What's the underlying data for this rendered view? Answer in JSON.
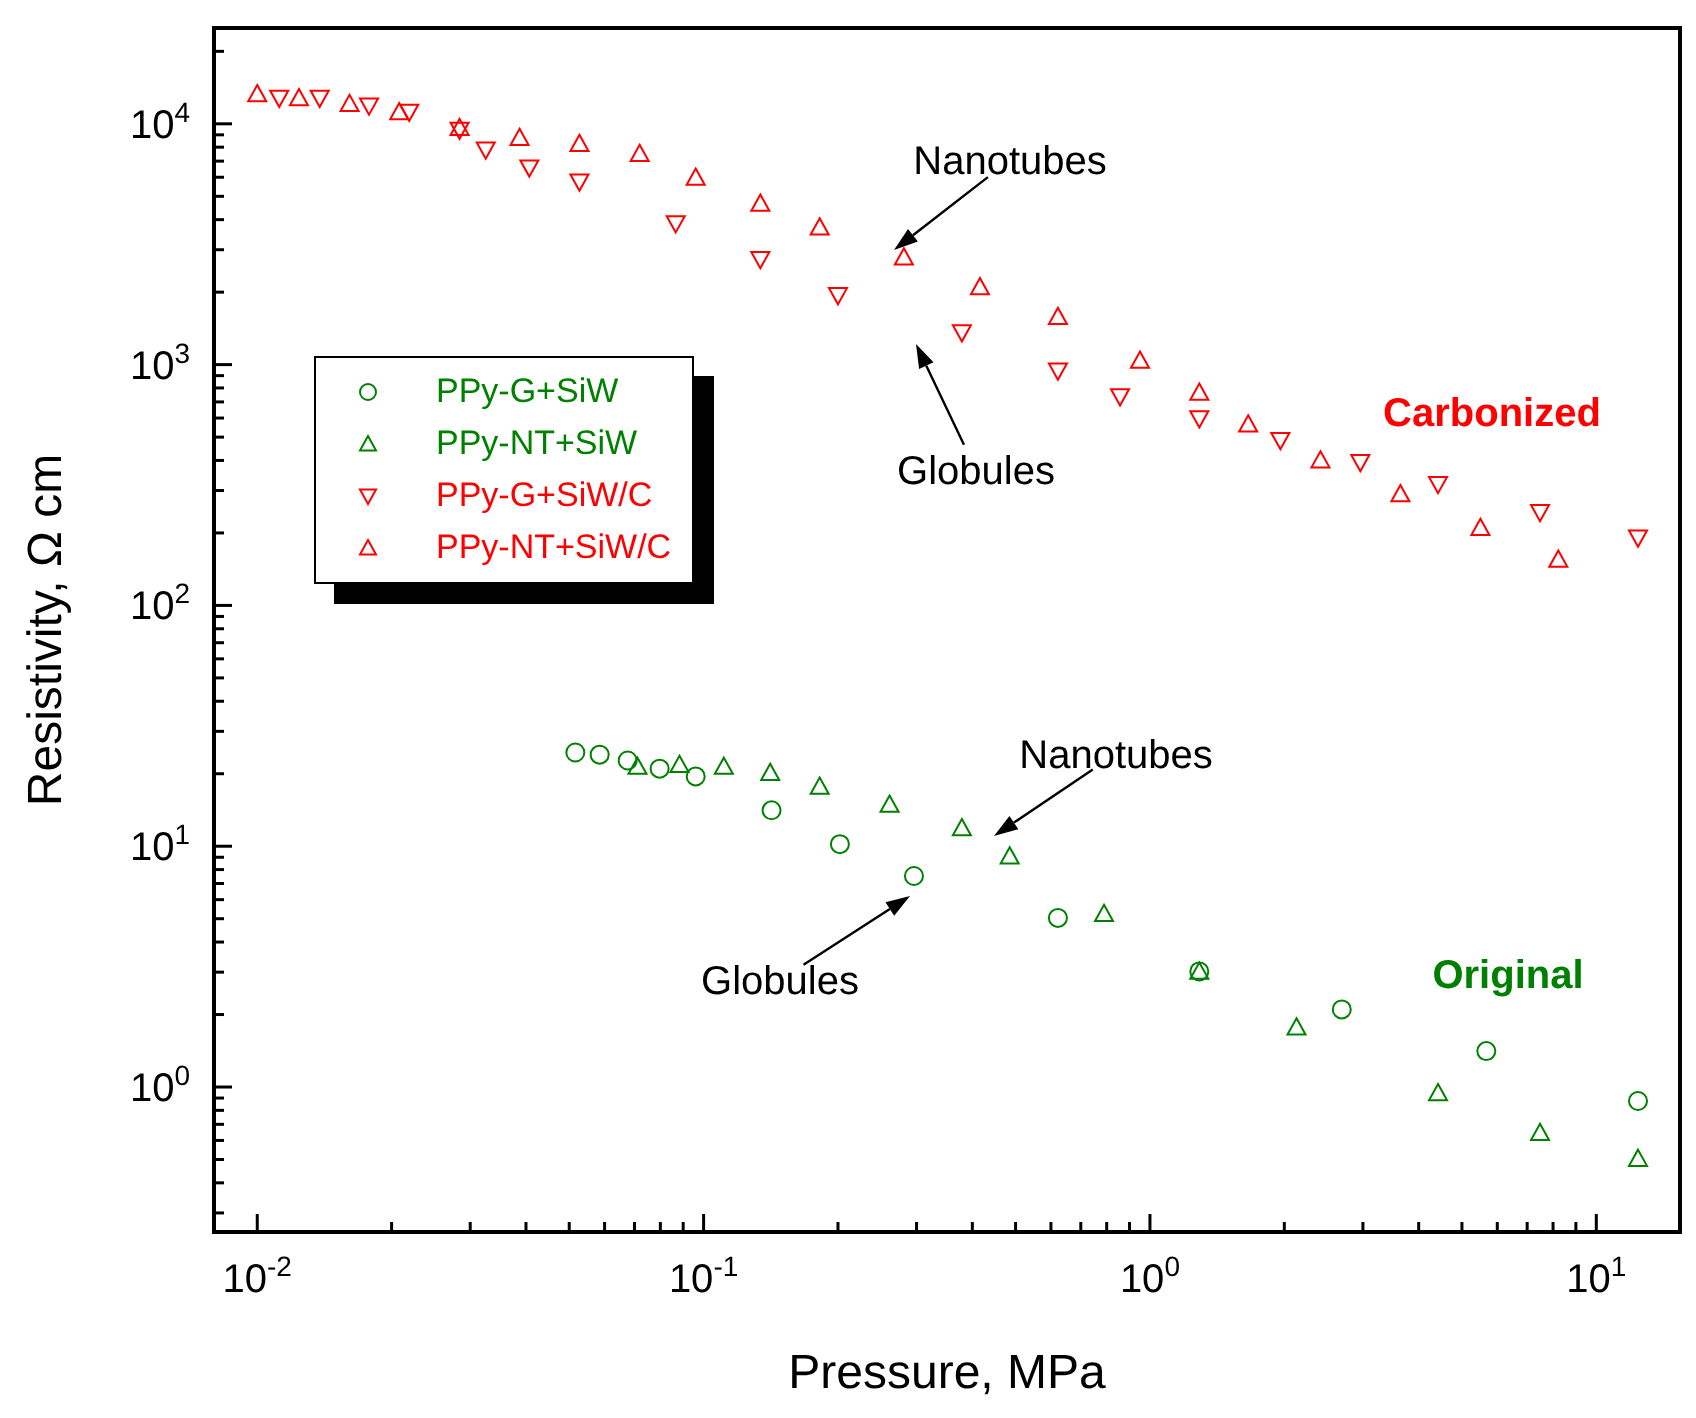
{
  "chart_data": {
    "type": "scatter",
    "xlabel": "Pressure, MPa",
    "ylabel": "Resistivity, Ω cm",
    "log": "xy",
    "legend": "left",
    "xlim": [
      0.008,
      15.4
    ],
    "ylim": [
      0.25,
      25000
    ],
    "xticks": [
      {
        "value": 0.01,
        "label": "10$^{-2}$"
      },
      {
        "value": 0.02,
        "label": null
      },
      {
        "value": 0.03,
        "label": null
      },
      {
        "value": 0.04,
        "label": null
      },
      {
        "value": 0.05,
        "label": null
      },
      {
        "value": 0.06,
        "label": null
      },
      {
        "value": 0.07,
        "label": null
      },
      {
        "value": 0.08,
        "label": null
      },
      {
        "value": 0.09,
        "label": null
      },
      {
        "value": 0.1,
        "label": "10$^{-1}$"
      },
      {
        "value": 0.2,
        "label": null
      },
      {
        "value": 0.3,
        "label": null
      },
      {
        "value": 0.4,
        "label": null
      },
      {
        "value": 0.5,
        "label": null
      },
      {
        "value": 0.6,
        "label": null
      },
      {
        "value": 0.7,
        "label": null
      },
      {
        "value": 0.8,
        "label": null
      },
      {
        "value": 0.9,
        "label": null
      },
      {
        "value": 1,
        "label": "10$^{0}$"
      },
      {
        "value": 2,
        "label": null
      },
      {
        "value": 3,
        "label": null
      },
      {
        "value": 4,
        "label": null
      },
      {
        "value": 5,
        "label": null
      },
      {
        "value": 6,
        "label": null
      },
      {
        "value": 7,
        "label": null
      },
      {
        "value": 8,
        "label": null
      },
      {
        "value": 9,
        "label": null
      },
      {
        "value": 10,
        "label": "10$^{1}$"
      }
    ],
    "yticks": [
      {
        "value": 0.3,
        "label": null
      },
      {
        "value": 0.4,
        "label": null
      },
      {
        "value": 0.5,
        "label": null
      },
      {
        "value": 0.6,
        "label": null
      },
      {
        "value": 0.7,
        "label": null
      },
      {
        "value": 0.8,
        "label": null
      },
      {
        "value": 0.9,
        "label": null
      },
      {
        "value": 1,
        "label": "10$^{0}$"
      },
      {
        "value": 2,
        "label": null
      },
      {
        "value": 3,
        "label": null
      },
      {
        "value": 4,
        "label": null
      },
      {
        "value": 5,
        "label": null
      },
      {
        "value": 6,
        "label": null
      },
      {
        "value": 7,
        "label": null
      },
      {
        "value": 8,
        "label": null
      },
      {
        "value": 9,
        "label": null
      },
      {
        "value": 10,
        "label": "10$^{1}$"
      },
      {
        "value": 20,
        "label": null
      },
      {
        "value": 30,
        "label": null
      },
      {
        "value": 40,
        "label": null
      },
      {
        "value": 50,
        "label": null
      },
      {
        "value": 60,
        "label": null
      },
      {
        "value": 70,
        "label": null
      },
      {
        "value": 80,
        "label": null
      },
      {
        "value": 90,
        "label": null
      },
      {
        "value": 100,
        "label": "10$^{2}$"
      },
      {
        "value": 200,
        "label": null
      },
      {
        "value": 300,
        "label": null
      },
      {
        "value": 400,
        "label": null
      },
      {
        "value": 500,
        "label": null
      },
      {
        "value": 600,
        "label": null
      },
      {
        "value": 700,
        "label": null
      },
      {
        "value": 800,
        "label": null
      },
      {
        "value": 900,
        "label": null
      },
      {
        "value": 1000,
        "label": "10$^{3}$"
      },
      {
        "value": 2000,
        "label": null
      },
      {
        "value": 3000,
        "label": null
      },
      {
        "value": 4000,
        "label": null
      },
      {
        "value": 5000,
        "label": null
      },
      {
        "value": 6000,
        "label": null
      },
      {
        "value": 7000,
        "label": null
      },
      {
        "value": 8000,
        "label": null
      },
      {
        "value": 9000,
        "label": null
      },
      {
        "value": 10000,
        "label": "10$^{4}$"
      },
      {
        "value": 20000,
        "label": null
      }
    ],
    "series": [
      {
        "name": "PPy-G+SiW",
        "color": "#008000",
        "marker": "circle",
        "x": [
          0.0516,
          0.0585,
          0.0676,
          0.0797,
          0.096,
          0.142,
          0.202,
          0.296,
          0.622,
          1.29,
          2.69,
          5.67,
          12.4
        ],
        "values": [
          24.5,
          24,
          22.7,
          21,
          19.5,
          14.1,
          10.2,
          7.52,
          5.04,
          3.02,
          2.1,
          1.41,
          0.875
        ]
      },
      {
        "name": "PPy-NT+SiW",
        "color": "#008000",
        "marker": "triangle",
        "x": [
          0.0711,
          0.0883,
          0.111,
          0.141,
          0.182,
          0.261,
          0.379,
          0.485,
          0.789,
          1.29,
          2.13,
          4.42,
          7.48,
          12.4
        ],
        "values": [
          21.4,
          21.8,
          21.4,
          20.2,
          17.7,
          14.9,
          11.9,
          9.09,
          5.24,
          3.02,
          1.77,
          0.944,
          0.646,
          0.504
        ]
      },
      {
        "name": "PPy-G+SiW/C",
        "color": "#ff0000",
        "marker": "triangle-down",
        "x": [
          0.0112,
          0.0138,
          0.0178,
          0.0219,
          0.0284,
          0.0325,
          0.0407,
          0.0527,
          0.0866,
          0.134,
          0.2,
          0.379,
          0.622,
          0.857,
          1.29,
          1.96,
          2.96,
          4.42,
          7.48,
          12.4
        ],
        "values": [
          12800,
          12800,
          11900,
          11200,
          9440,
          7810,
          6580,
          5750,
          3860,
          2740,
          1940,
          1360,
          944,
          738,
          598,
          485,
          393,
          319,
          244,
          191
        ]
      },
      {
        "name": "PPy-NT+SiW/C",
        "color": "#ff0000",
        "marker": "triangle",
        "x": [
          0.01,
          0.0124,
          0.0161,
          0.0208,
          0.0284,
          0.0387,
          0.0527,
          0.0719,
          0.096,
          0.134,
          0.182,
          0.281,
          0.416,
          0.622,
          0.95,
          1.29,
          1.66,
          2.41,
          3.64,
          5.5,
          8.22
        ],
        "values": [
          13300,
          12800,
          12100,
          11200,
          9620,
          8750,
          8260,
          7510,
          5980,
          4670,
          3720,
          2790,
          2100,
          1580,
          1040,
          766,
          565,
          401,
          290,
          210,
          155
        ]
      }
    ],
    "annotations": [
      "Nanotubes",
      "Globules",
      "Carbonized",
      "Nanotubes",
      "Globules",
      "Original"
    ]
  }
}
